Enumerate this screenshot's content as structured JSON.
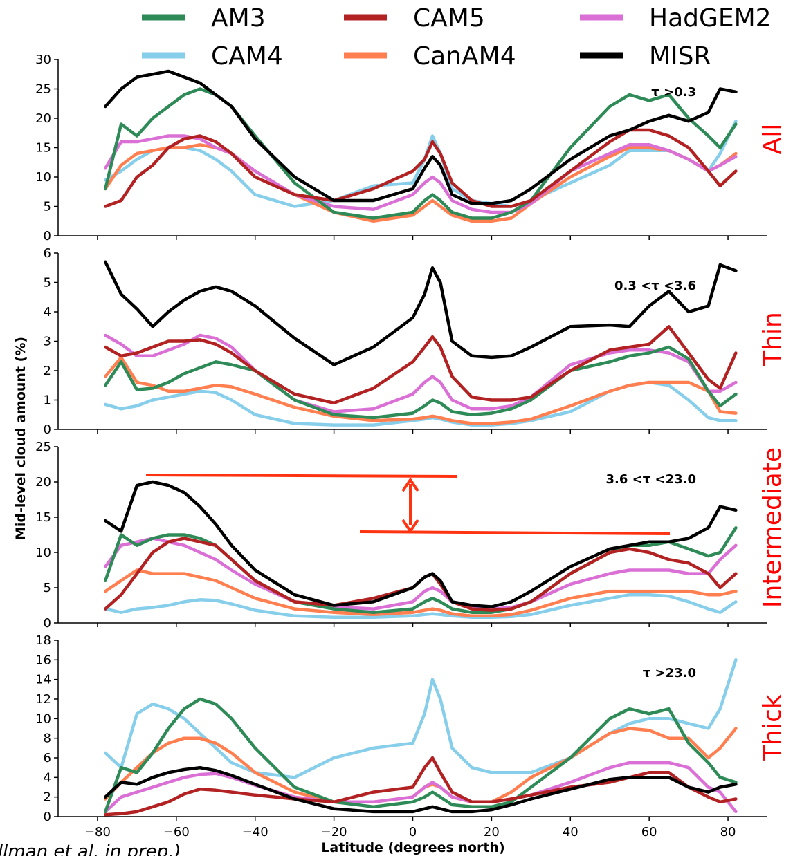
{
  "chart_data": {
    "type": "line",
    "xlabel": "Latitude (degrees north)",
    "ylabel": "Mid-level cloud amount (%)",
    "xlim": [
      -90,
      90
    ],
    "xticks": [
      -80,
      -60,
      -40,
      -20,
      0,
      20,
      40,
      60,
      80
    ],
    "xtick_labels": [
      "−80",
      "−60",
      "−40",
      "−20",
      "0",
      "20",
      "40",
      "60",
      "80"
    ],
    "legend": {
      "placement": "top",
      "entries": [
        {
          "name": "AM3",
          "color": "#2e8b57"
        },
        {
          "name": "CAM5",
          "color": "#b22222"
        },
        {
          "name": "HadGEM2",
          "color": "#da70d6"
        },
        {
          "name": "CAM4",
          "color": "#87ceeb"
        },
        {
          "name": "CanAM4",
          "color": "#ff7f50"
        },
        {
          "name": "MISR",
          "color": "#000000"
        }
      ]
    },
    "credit": "(Hillman et al. in prep.)",
    "panels": [
      {
        "label": "All",
        "tau": "τ >0.3",
        "ylim": [
          0,
          30
        ],
        "yticks": [
          0,
          5,
          10,
          15,
          20,
          25,
          30
        ],
        "x": [
          -78,
          -74,
          -70,
          -66,
          -62,
          -58,
          -54,
          -50,
          -46,
          -40,
          -30,
          -20,
          -10,
          0,
          3,
          5,
          7,
          10,
          15,
          20,
          25,
          30,
          40,
          50,
          55,
          60,
          65,
          70,
          75,
          78,
          82
        ],
        "series": [
          {
            "name": "AM3",
            "values": [
              8,
              19,
              17,
              20,
              22,
              24,
              25,
              24,
              22,
              17,
              9,
              4,
              3,
              4,
              6,
              7,
              6,
              4,
              3,
              3,
              4,
              6,
              15,
              22,
              24,
              23,
              24,
              20,
              17,
              15,
              19
            ]
          },
          {
            "name": "CAM5",
            "values": [
              5,
              6,
              10,
              12,
              15,
              16.5,
              17,
              16,
              14,
              10,
              7,
              6,
              8,
              11,
              13,
              16,
              14,
              9,
              6,
              5,
              5,
              6,
              11,
              16,
              18,
              18,
              17,
              15,
              11,
              8.5,
              11
            ]
          },
          {
            "name": "HadGEM2",
            "values": [
              11.5,
              16,
              16,
              16.5,
              17,
              17,
              16.5,
              15,
              14,
              11,
              7,
              5,
              4.5,
              7,
              9,
              10,
              9,
              6,
              4.5,
              4,
              4,
              5.5,
              11,
              14,
              15.5,
              15.5,
              14.5,
              13,
              11,
              12,
              13.5
            ]
          },
          {
            "name": "CAM4",
            "values": [
              9.5,
              11,
              13,
              14.5,
              15,
              15,
              14.5,
              13,
              11,
              7,
              5,
              6,
              8.5,
              9,
              13,
              17,
              14,
              8,
              6,
              5.5,
              5,
              6,
              9,
              12,
              14.5,
              14.5,
              14.5,
              13,
              11,
              14,
              19.5
            ]
          },
          {
            "name": "CanAM4",
            "values": [
              8,
              12,
              14,
              14.5,
              15,
              15,
              15.5,
              15,
              14,
              11,
              7,
              4,
              2.5,
              3.5,
              5,
              6,
              5,
              3.5,
              2.5,
              2.5,
              3,
              5.5,
              10,
              13.5,
              15,
              15,
              14.5,
              13,
              11,
              12,
              14
            ]
          },
          {
            "name": "MISR",
            "values": [
              22,
              25,
              27,
              27.5,
              28,
              27,
              26,
              24,
              22,
              16.5,
              10,
              6,
              6,
              8,
              11.5,
              13.5,
              12,
              7,
              5.5,
              5.5,
              6,
              8,
              13,
              17,
              18,
              19.5,
              20.5,
              19.5,
              21,
              25,
              24.5
            ]
          }
        ]
      },
      {
        "label": "Thin",
        "tau": "0.3 <τ <3.6",
        "ylim": [
          0,
          6
        ],
        "yticks": [
          0,
          1,
          2,
          3,
          4,
          5,
          6
        ],
        "x": [
          -78,
          -74,
          -70,
          -66,
          -62,
          -58,
          -54,
          -50,
          -46,
          -40,
          -30,
          -20,
          -10,
          0,
          3,
          5,
          7,
          10,
          15,
          20,
          25,
          30,
          40,
          50,
          55,
          60,
          65,
          70,
          75,
          78,
          82
        ],
        "series": [
          {
            "name": "AM3",
            "values": [
              1.5,
              2.3,
              1.35,
              1.4,
              1.6,
              1.9,
              2.1,
              2.3,
              2.2,
              2.0,
              1.0,
              0.5,
              0.4,
              0.55,
              0.8,
              1.0,
              0.9,
              0.6,
              0.5,
              0.55,
              0.7,
              1.0,
              2.0,
              2.3,
              2.5,
              2.6,
              2.8,
              2.4,
              1.3,
              0.8,
              1.2
            ]
          },
          {
            "name": "CAM5",
            "values": [
              2.8,
              2.5,
              2.6,
              2.8,
              3.0,
              3.0,
              3.05,
              2.9,
              2.6,
              2.0,
              1.2,
              0.9,
              1.4,
              2.3,
              2.8,
              3.15,
              2.8,
              1.8,
              1.1,
              1.0,
              1.0,
              1.1,
              2.0,
              2.7,
              2.8,
              2.9,
              3.5,
              2.6,
              1.7,
              1.4,
              2.6
            ]
          },
          {
            "name": "HadGEM2",
            "values": [
              3.2,
              2.9,
              2.5,
              2.5,
              2.7,
              2.9,
              3.2,
              3.1,
              2.8,
              2.0,
              1.0,
              0.6,
              0.7,
              1.2,
              1.6,
              1.8,
              1.6,
              1.0,
              0.7,
              0.7,
              0.8,
              1.1,
              2.2,
              2.6,
              2.7,
              2.7,
              2.6,
              2.3,
              1.3,
              1.3,
              1.6
            ]
          },
          {
            "name": "CAM4",
            "values": [
              0.85,
              0.7,
              0.8,
              1.0,
              1.1,
              1.2,
              1.3,
              1.25,
              1.0,
              0.5,
              0.2,
              0.15,
              0.15,
              0.3,
              0.35,
              0.4,
              0.35,
              0.25,
              0.15,
              0.15,
              0.2,
              0.3,
              0.6,
              1.3,
              1.5,
              1.6,
              1.5,
              1.0,
              0.4,
              0.3,
              0.3
            ]
          },
          {
            "name": "CanAM4",
            "values": [
              1.8,
              2.45,
              1.6,
              1.5,
              1.3,
              1.3,
              1.4,
              1.5,
              1.45,
              1.2,
              0.75,
              0.45,
              0.3,
              0.35,
              0.4,
              0.45,
              0.4,
              0.3,
              0.2,
              0.2,
              0.25,
              0.35,
              0.8,
              1.3,
              1.5,
              1.6,
              1.6,
              1.6,
              1.3,
              0.6,
              0.55
            ]
          },
          {
            "name": "MISR",
            "values": [
              5.7,
              4.6,
              4.1,
              3.5,
              4.0,
              4.4,
              4.7,
              4.85,
              4.7,
              4.2,
              3.1,
              2.2,
              2.8,
              3.8,
              4.6,
              5.5,
              5.0,
              3.0,
              2.5,
              2.45,
              2.5,
              2.8,
              3.5,
              3.55,
              3.5,
              4.2,
              4.7,
              4.0,
              4.2,
              5.6,
              5.4
            ]
          }
        ]
      },
      {
        "label": "Intermediate",
        "tau": "3.6 <τ <23.0",
        "ylim": [
          0,
          25
        ],
        "yticks": [
          0,
          5,
          10,
          15,
          20,
          25
        ],
        "x": [
          -78,
          -74,
          -70,
          -66,
          -62,
          -58,
          -54,
          -50,
          -46,
          -40,
          -30,
          -20,
          -10,
          0,
          3,
          5,
          7,
          10,
          15,
          20,
          25,
          30,
          40,
          50,
          55,
          60,
          65,
          70,
          75,
          78,
          82
        ],
        "series": [
          {
            "name": "AM3",
            "values": [
              6,
              12.5,
              11,
              12,
              12.5,
              12.5,
              12,
              11,
              9,
              6,
              3,
              2,
              1.5,
              2,
              3,
              3.5,
              3,
              2,
              1.5,
              1.5,
              2,
              3,
              7,
              10,
              11,
              11,
              11.5,
              10.5,
              9.5,
              10,
              13.5
            ]
          },
          {
            "name": "CAM5",
            "values": [
              2,
              4,
              7,
              10,
              11.5,
              12,
              11.5,
              11,
              9,
              6,
              3,
              2.5,
              3.5,
              5,
              6.5,
              7,
              5.5,
              3,
              2,
              1.8,
              2,
              3,
              7,
              10,
              10.5,
              10,
              9,
              8.5,
              7,
              5,
              7
            ]
          },
          {
            "name": "HadGEM2",
            "values": [
              8,
              11,
              11.5,
              12,
              11.5,
              11,
              10,
              9,
              7.5,
              5.5,
              3,
              2.3,
              2,
              3,
              4.5,
              5,
              4.5,
              3,
              2.2,
              2,
              2.2,
              3,
              5.5,
              7,
              7.5,
              7.5,
              7.5,
              7,
              7,
              9,
              11
            ]
          },
          {
            "name": "CAM4",
            "values": [
              2,
              1.5,
              2,
              2.2,
              2.5,
              3,
              3.3,
              3.2,
              2.7,
              1.8,
              1.0,
              0.8,
              0.8,
              1.0,
              1.2,
              1.3,
              1.2,
              1.0,
              0.8,
              0.8,
              0.9,
              1.2,
              2.5,
              3.5,
              4,
              4,
              3.8,
              3,
              2,
              1.5,
              3
            ]
          },
          {
            "name": "CanAM4",
            "values": [
              4.5,
              6,
              7.5,
              7,
              7,
              7,
              6.5,
              6,
              5,
              3.5,
              2,
              1.5,
              1.2,
              1.5,
              1.8,
              2,
              1.8,
              1.3,
              1,
              1,
              1.2,
              1.8,
              3.5,
              4.5,
              4.5,
              4.5,
              4.5,
              4.5,
              4,
              4,
              4.5
            ]
          },
          {
            "name": "MISR",
            "values": [
              14.5,
              13,
              19.5,
              20,
              19.5,
              18.5,
              16.5,
              14,
              11,
              7.5,
              4,
              2.5,
              3,
              5,
              6.5,
              7,
              6,
              3,
              2.5,
              2.3,
              3,
              4.5,
              8,
              10.5,
              11,
              11.5,
              11.5,
              12,
              13.5,
              16.5,
              16
            ]
          }
        ]
      },
      {
        "label": "Thick",
        "tau": "τ >23.0",
        "ylim": [
          0,
          18
        ],
        "yticks": [
          0,
          2,
          4,
          6,
          8,
          10,
          12,
          14,
          16,
          18
        ],
        "x": [
          -78,
          -74,
          -70,
          -66,
          -62,
          -58,
          -54,
          -50,
          -46,
          -40,
          -30,
          -20,
          -10,
          0,
          3,
          5,
          7,
          10,
          15,
          20,
          25,
          30,
          40,
          50,
          55,
          60,
          65,
          70,
          75,
          78,
          82
        ],
        "series": [
          {
            "name": "AM3",
            "values": [
              0.5,
              5,
              4.5,
              6.5,
              9,
              11,
              12,
              11.5,
              10,
              7,
              3,
              1.5,
              1,
              1.5,
              2,
              2.5,
              2,
              1.2,
              1,
              1,
              1.5,
              3,
              6,
              10,
              11,
              10.5,
              11,
              7.5,
              5.5,
              4,
              3.5
            ]
          },
          {
            "name": "CAM5",
            "values": [
              0.2,
              0.3,
              0.5,
              1,
              1.5,
              2.3,
              2.8,
              2.7,
              2.5,
              2.2,
              1.8,
              1.5,
              2.5,
              3,
              5,
              6,
              4.5,
              2.5,
              1.5,
              1.5,
              1.8,
              2.2,
              3,
              3.5,
              4,
              4.5,
              4.5,
              3,
              2,
              1.5,
              1.8
            ]
          },
          {
            "name": "HadGEM2",
            "values": [
              0.5,
              2,
              2.5,
              3,
              3.5,
              4,
              4.3,
              4.4,
              4,
              3.2,
              2,
              1.5,
              1.5,
              2,
              3,
              3.5,
              3,
              2,
              1.5,
              1.5,
              1.8,
              2.2,
              3.5,
              5,
              5.5,
              5.5,
              5.5,
              5,
              3,
              2.5,
              0.5
            ]
          },
          {
            "name": "CAM4",
            "values": [
              6.5,
              5,
              10.5,
              11.5,
              11,
              10,
              8.5,
              7,
              5.5,
              4.5,
              4,
              6,
              7,
              7.5,
              10.5,
              14,
              12,
              7,
              5,
              4.5,
              4.5,
              4.5,
              6,
              8.5,
              9.5,
              10,
              10,
              9.5,
              9,
              11,
              16
            ]
          },
          {
            "name": "CanAM4",
            "values": [
              1.8,
              3.5,
              5,
              6.5,
              7.5,
              8,
              8,
              7.5,
              6.5,
              4.5,
              2.5,
              1.5,
              1.5,
              2,
              3,
              3.3,
              3,
              2,
              1.5,
              1.5,
              2.5,
              4,
              6,
              8.5,
              9,
              8.8,
              8,
              8,
              6,
              7,
              9
            ]
          },
          {
            "name": "MISR",
            "values": [
              2,
              3.5,
              3.3,
              4,
              4.5,
              4.8,
              5,
              4.7,
              4.2,
              3.3,
              1.8,
              0.8,
              0.5,
              0.5,
              0.8,
              1,
              0.8,
              0.5,
              0.5,
              0.7,
              1.2,
              1.8,
              2.8,
              3.8,
              4,
              4,
              4,
              3,
              2.5,
              3,
              3.3
            ]
          }
        ]
      }
    ]
  }
}
